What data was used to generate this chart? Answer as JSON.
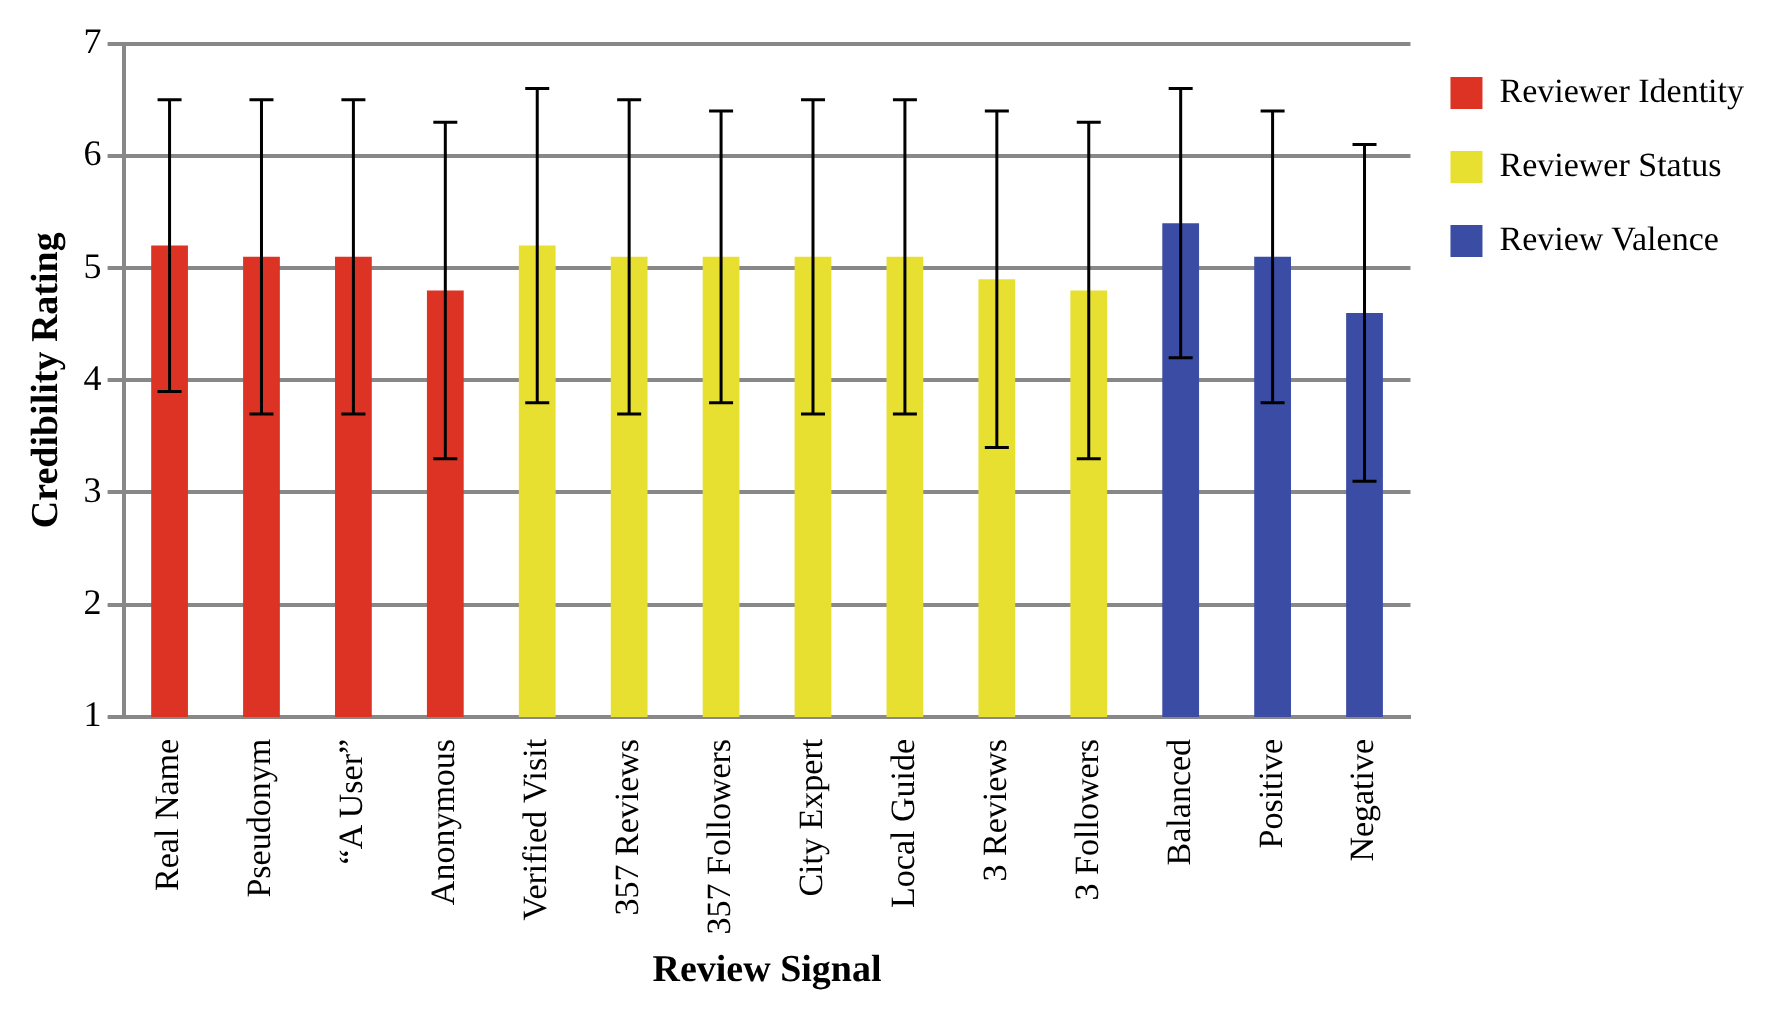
{
  "chart_data": {
    "type": "bar",
    "xlabel": "Review Signal",
    "ylabel": "Credibility Rating",
    "categories": [
      "Real Name",
      "Pseudonym",
      "“A User”",
      "Anonymous",
      "Verified Visit",
      "357 Reviews",
      "357 Followers",
      "City Expert",
      "Local Guide",
      "3 Reviews",
      "3 Followers",
      "Balanced",
      "Positive",
      "Negative"
    ],
    "series": [
      {
        "name": "Reviewer Identity",
        "color": "#dd3324",
        "values": [
          5.2,
          5.1,
          5.1,
          4.8,
          null,
          null,
          null,
          null,
          null,
          null,
          null,
          null,
          null,
          null
        ],
        "errors": [
          [
            3.9,
            6.5
          ],
          [
            3.7,
            6.5
          ],
          [
            3.7,
            6.5
          ],
          [
            3.3,
            6.3
          ],
          null,
          null,
          null,
          null,
          null,
          null,
          null,
          null,
          null,
          null
        ]
      },
      {
        "name": "Reviewer Status",
        "color": "#e8e030",
        "values": [
          null,
          null,
          null,
          null,
          5.2,
          5.1,
          5.1,
          5.1,
          5.1,
          4.9,
          4.8,
          null,
          null,
          null
        ],
        "errors": [
          null,
          null,
          null,
          null,
          [
            3.8,
            6.6
          ],
          [
            3.7,
            6.5
          ],
          [
            3.8,
            6.4
          ],
          [
            3.7,
            6.5
          ],
          [
            3.7,
            6.5
          ],
          [
            3.4,
            6.4
          ],
          [
            3.3,
            6.3
          ],
          null,
          null,
          null
        ]
      },
      {
        "name": "Review Valence",
        "color": "#3a4ca3",
        "values": [
          null,
          null,
          null,
          null,
          null,
          null,
          null,
          null,
          null,
          null,
          null,
          5.4,
          5.1,
          4.6
        ],
        "errors": [
          null,
          null,
          null,
          null,
          null,
          null,
          null,
          null,
          null,
          null,
          null,
          [
            4.2,
            6.6
          ],
          [
            3.8,
            6.4
          ],
          [
            3.1,
            6.1
          ]
        ]
      }
    ],
    "ylim": [
      1,
      7
    ],
    "yticks": [
      1,
      2,
      3,
      4,
      5,
      6,
      7
    ],
    "grid": "y",
    "legend": "right"
  }
}
